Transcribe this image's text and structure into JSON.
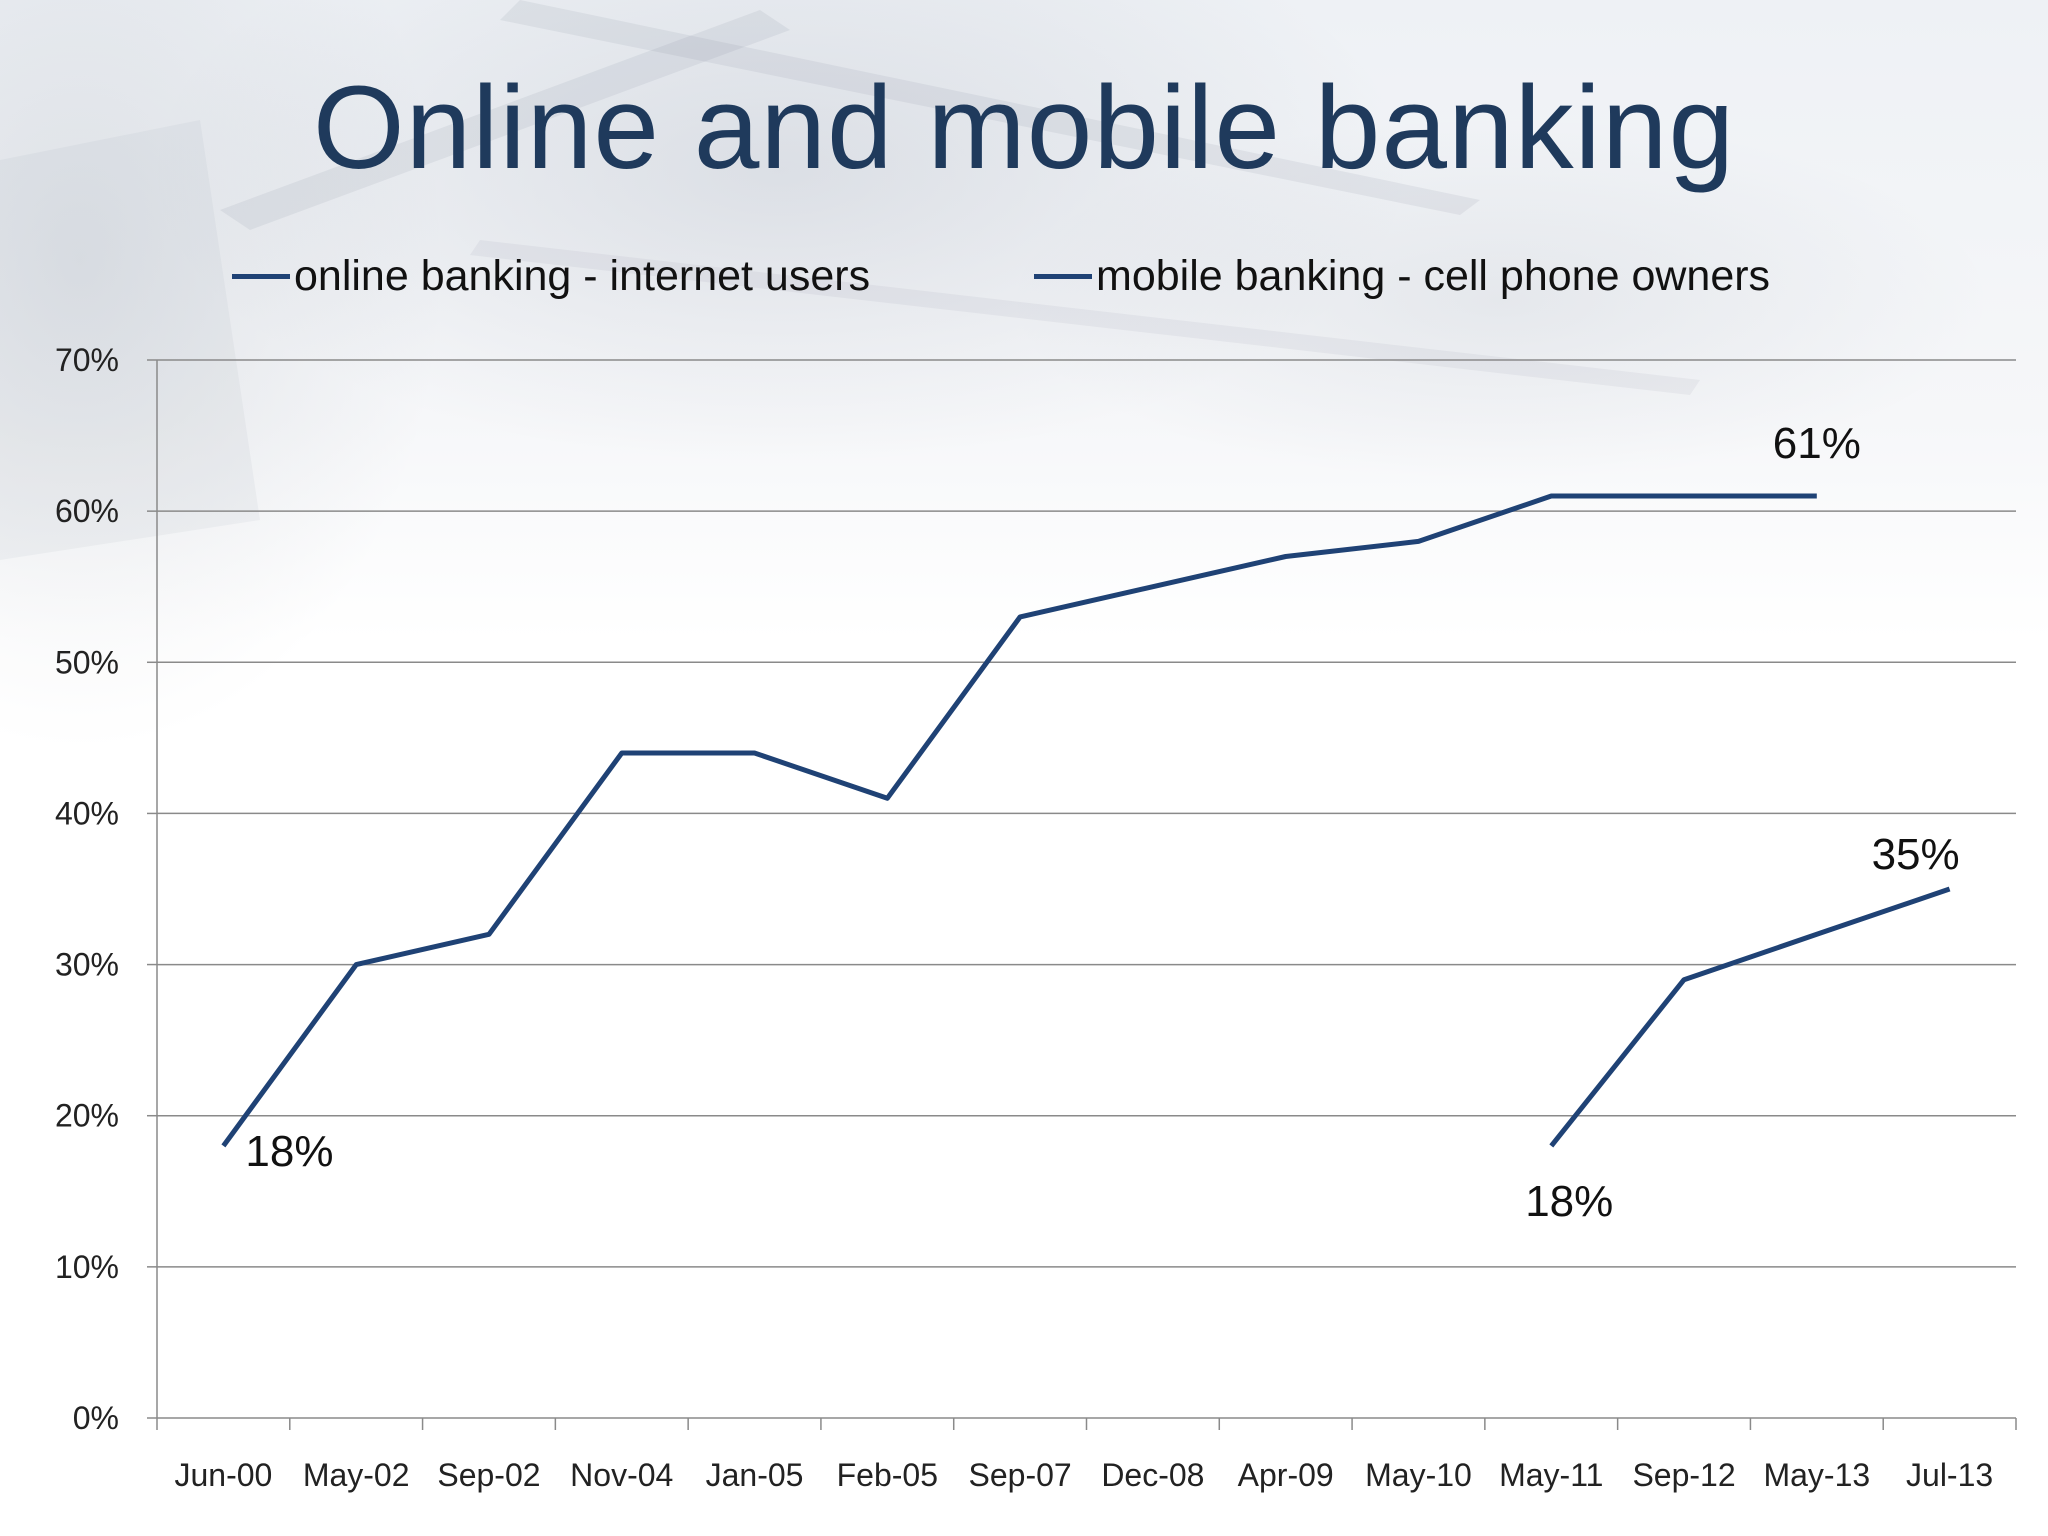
{
  "chart_data": {
    "type": "line",
    "title": "Online and mobile banking",
    "categories": [
      "Jun-00",
      "May-02",
      "Sep-02",
      "Nov-04",
      "Jan-05",
      "Feb-05",
      "Sep-07",
      "Dec-08",
      "Apr-09",
      "May-10",
      "May-11",
      "Sep-12",
      "May-13",
      "Jul-13"
    ],
    "series": [
      {
        "name": "online banking - internet users",
        "color": "#1f4275",
        "values": [
          18,
          30,
          32,
          44,
          44,
          41,
          53,
          55,
          57,
          58,
          61,
          61,
          61,
          null
        ]
      },
      {
        "name": "mobile banking - cell phone owners",
        "color": "#1f4275",
        "values": [
          null,
          null,
          null,
          null,
          null,
          null,
          null,
          null,
          null,
          null,
          18,
          29,
          32,
          35
        ]
      }
    ],
    "ylim": [
      0,
      70
    ],
    "yticks": [
      0,
      10,
      20,
      30,
      40,
      50,
      60,
      70
    ],
    "ytick_labels": [
      "0%",
      "10%",
      "20%",
      "30%",
      "40%",
      "50%",
      "60%",
      "70%"
    ],
    "grid": true,
    "legend_position": "top",
    "data_labels": [
      {
        "series": 0,
        "index": 0,
        "text": "18%",
        "placement": "below-right"
      },
      {
        "series": 0,
        "index": 12,
        "text": "61%",
        "placement": "above"
      },
      {
        "series": 1,
        "index": 10,
        "text": "18%",
        "placement": "below"
      },
      {
        "series": 1,
        "index": 13,
        "text": "35%",
        "placement": "above-left"
      }
    ]
  }
}
